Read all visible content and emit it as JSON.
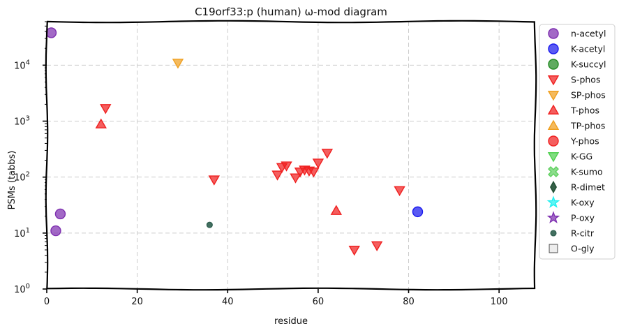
{
  "chart_data": {
    "type": "scatter",
    "title": "C19orf33:p (human) ω-mod diagram",
    "xlabel": "residue",
    "ylabel": "PSMs (tabbs)",
    "xlim": [
      0,
      108
    ],
    "ylim": [
      1,
      60000
    ],
    "yscale": "log",
    "grid": true,
    "x_ticks": [
      {
        "value": 0,
        "label": "0"
      },
      {
        "value": 20,
        "label": "20"
      },
      {
        "value": 40,
        "label": "40"
      },
      {
        "value": 60,
        "label": "60"
      },
      {
        "value": 80,
        "label": "80"
      },
      {
        "value": 100,
        "label": "100"
      }
    ],
    "y_ticks": [
      {
        "value": 1,
        "base": "10",
        "exp": "0"
      },
      {
        "value": 10,
        "base": "10",
        "exp": "1"
      },
      {
        "value": 100,
        "base": "10",
        "exp": "2"
      },
      {
        "value": 1000,
        "base": "10",
        "exp": "3"
      },
      {
        "value": 10000,
        "base": "10",
        "exp": "4"
      }
    ],
    "legend_position": "right, outside plot",
    "series": [
      {
        "name": "n-acetyl",
        "marker": "circle",
        "color": "#7e2fb0",
        "points": [
          {
            "x": 1,
            "y": 38000
          },
          {
            "x": 3,
            "y": 22
          },
          {
            "x": 2,
            "y": 11
          }
        ]
      },
      {
        "name": "K-acetyl",
        "marker": "circle",
        "color": "#1a1aee",
        "points": [
          {
            "x": 82,
            "y": 24
          }
        ]
      },
      {
        "name": "K-succyl",
        "marker": "circle",
        "color": "#238a23",
        "points": []
      },
      {
        "name": "S-phos",
        "marker": "triangle-down",
        "color": "#f02020",
        "points": [
          {
            "x": 13,
            "y": 1700
          },
          {
            "x": 37,
            "y": 90
          },
          {
            "x": 51,
            "y": 110
          },
          {
            "x": 52,
            "y": 150
          },
          {
            "x": 53,
            "y": 160
          },
          {
            "x": 55,
            "y": 98
          },
          {
            "x": 56,
            "y": 125
          },
          {
            "x": 57,
            "y": 135
          },
          {
            "x": 58,
            "y": 130
          },
          {
            "x": 59,
            "y": 125
          },
          {
            "x": 60,
            "y": 180
          },
          {
            "x": 62,
            "y": 270
          },
          {
            "x": 68,
            "y": 5
          },
          {
            "x": 73,
            "y": 6
          },
          {
            "x": 78,
            "y": 58
          }
        ]
      },
      {
        "name": "SP-phos",
        "marker": "triangle-down",
        "color": "#f0a020",
        "points": [
          {
            "x": 29,
            "y": 11000
          }
        ]
      },
      {
        "name": "T-phos",
        "marker": "triangle-up",
        "color": "#f02020",
        "points": [
          {
            "x": 12,
            "y": 880
          },
          {
            "x": 64,
            "y": 25
          }
        ]
      },
      {
        "name": "TP-phos",
        "marker": "triangle-up",
        "color": "#f0a020",
        "points": []
      },
      {
        "name": "Y-phos",
        "marker": "circle",
        "color": "#f02020",
        "points": []
      },
      {
        "name": "K-GG",
        "marker": "triangle-down",
        "color": "#50d050",
        "points": []
      },
      {
        "name": "K-sumo",
        "marker": "x",
        "color": "#60d060",
        "points": []
      },
      {
        "name": "R-dimet",
        "marker": "diamond",
        "color": "#1f4f33",
        "points": []
      },
      {
        "name": "K-oxy",
        "marker": "star",
        "color": "#20f0f0",
        "points": []
      },
      {
        "name": "P-oxy",
        "marker": "star",
        "color": "#7e2fb0",
        "points": []
      },
      {
        "name": "R-citr",
        "marker": "small-circle",
        "color": "#2f5f4f",
        "points": [
          {
            "x": 36,
            "y": 14
          }
        ]
      },
      {
        "name": "O-gly",
        "marker": "square",
        "color": "#e6e6e6",
        "points": []
      }
    ]
  }
}
